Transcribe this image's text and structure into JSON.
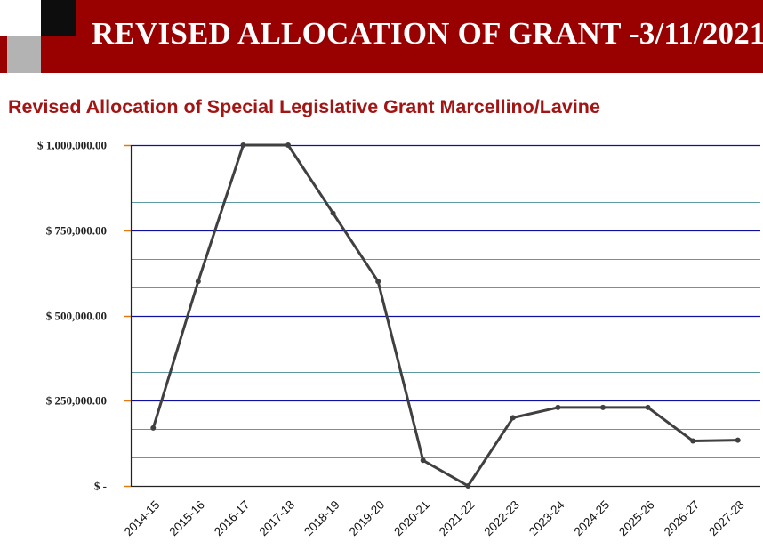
{
  "header": {
    "title": "REVISED ALLOCATION OF GRANT -3/11/2021"
  },
  "colors": {
    "banner": "#990000",
    "chart_title": "#a31515",
    "major_grid": "#1010a0",
    "minor_grid": "#5e9aa0",
    "line": "#404040",
    "tick_mark": "#e07a10"
  },
  "chart_data": {
    "type": "line",
    "title": "Revised Allocation of Special Legislative Grant Marcellino/Lavine",
    "xlabel": "",
    "ylabel": "",
    "categories": [
      "2014-15",
      "2015-16",
      "2016-17",
      "2017-18",
      "2018-19",
      "2019-20",
      "2020-21",
      "2021-22",
      "2022-23",
      "2023-24",
      "2024-25",
      "2025-26",
      "2026-27",
      "2027-28"
    ],
    "series": [
      {
        "values": [
          170000,
          600000,
          1000000,
          1000000,
          800000,
          600000,
          75000,
          0,
          200000,
          230000,
          230000,
          230000,
          132000,
          134000
        ]
      }
    ],
    "ylim": [
      0,
      1000000
    ],
    "yticks": [
      {
        "value": 1000000,
        "label": "$ 1,000,000.00"
      },
      {
        "value": 750000,
        "label": "$ 750,000.00"
      },
      {
        "value": 500000,
        "label": "$ 500,000.00"
      },
      {
        "value": 250000,
        "label": "$ 250,000.00"
      },
      {
        "value": 0,
        "label": "$ -"
      }
    ],
    "minor_grid_step": 83333.33,
    "grid": true,
    "legend": "none"
  }
}
